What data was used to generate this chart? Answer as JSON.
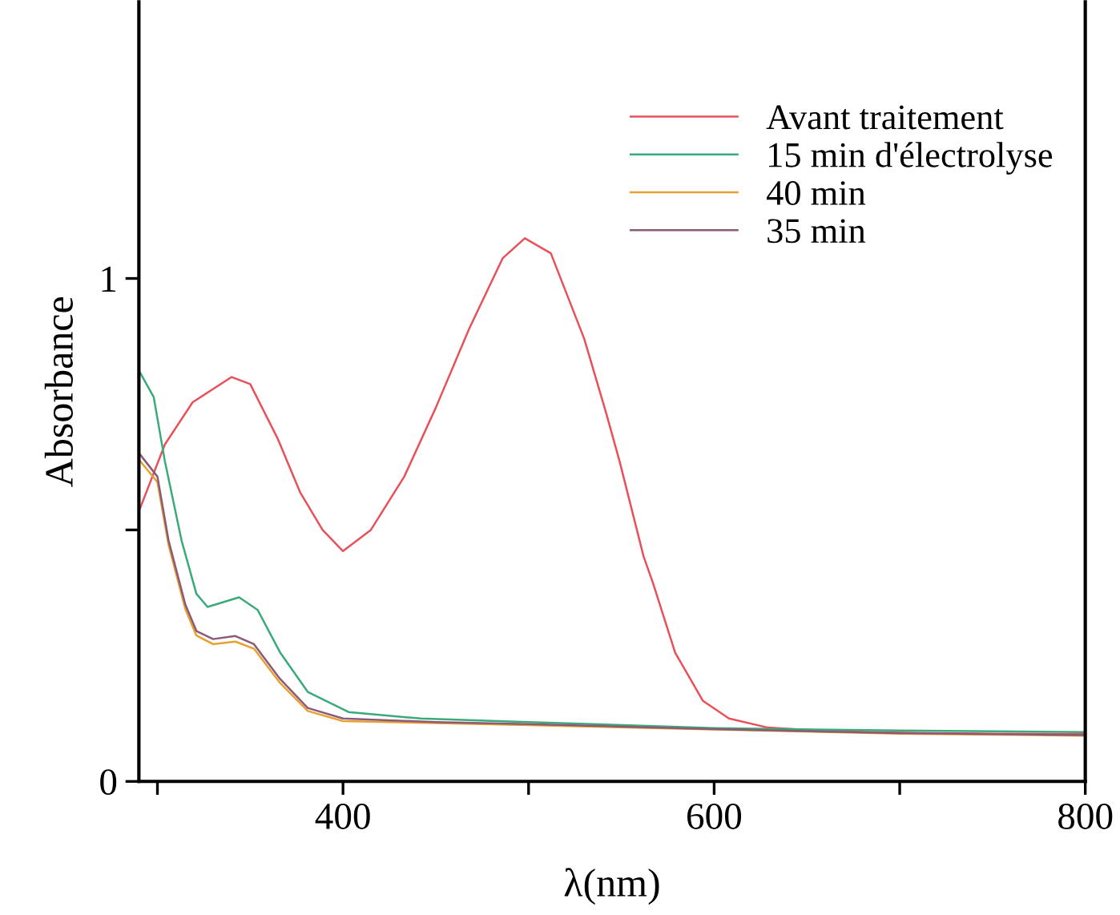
{
  "chart_data": {
    "type": "line",
    "xlabel": "λ(nm)",
    "ylabel": "Absorbance",
    "xlim": [
      290,
      800
    ],
    "xticks": [
      {
        "value": 300,
        "label": null
      },
      400,
      {
        "value": 500,
        "label": null
      },
      600,
      {
        "value": 700,
        "label": null
      },
      800
    ],
    "ylim": [
      0,
      1.55
    ],
    "yticks": [
      0,
      {
        "value": 0.5,
        "label": null
      },
      1
    ],
    "grid": false,
    "legend": "top right",
    "marker": "none",
    "line_style": "solid",
    "series": [
      {
        "name": "Avant traitement",
        "color": "#e8505a",
        "x": [
          290,
          304,
          319,
          340,
          350,
          365,
          377,
          389,
          400,
          415,
          433,
          450,
          468,
          486,
          498,
          512,
          530,
          542,
          549,
          562,
          567,
          579,
          594,
          608,
          629,
          660,
          700,
          750,
          800
        ],
        "values": [
          0.537,
          0.67,
          0.754,
          0.804,
          0.79,
          0.68,
          0.574,
          0.5,
          0.458,
          0.5,
          0.606,
          0.743,
          0.9,
          1.04,
          1.08,
          1.05,
          0.88,
          0.73,
          0.637,
          0.447,
          0.395,
          0.256,
          0.16,
          0.125,
          0.107,
          0.1,
          0.097,
          0.095,
          0.094
        ]
      },
      {
        "name": "15 min d'électrolyse",
        "color": "#3aaa7a",
        "x": [
          290,
          298,
          304,
          313,
          321,
          327,
          344,
          354,
          366,
          381,
          403,
          442,
          500,
          600,
          700,
          800
        ],
        "values": [
          0.817,
          0.764,
          0.637,
          0.479,
          0.373,
          0.347,
          0.366,
          0.341,
          0.257,
          0.178,
          0.138,
          0.125,
          0.118,
          0.106,
          0.101,
          0.098
        ]
      },
      {
        "name": "40 min",
        "color": "#e8a030",
        "x": [
          290,
          300,
          306,
          315,
          321,
          330,
          342,
          352,
          366,
          381,
          400,
          450,
          500,
          600,
          700,
          800
        ],
        "values": [
          0.64,
          0.595,
          0.47,
          0.343,
          0.29,
          0.273,
          0.278,
          0.264,
          0.196,
          0.14,
          0.12,
          0.116,
          0.112,
          0.103,
          0.095,
          0.091
        ]
      },
      {
        "name": "35 min",
        "color": "#8a5a78",
        "x": [
          290,
          300,
          306,
          315,
          321,
          330,
          342,
          352,
          366,
          381,
          400,
          450,
          500,
          600,
          700,
          800
        ],
        "values": [
          0.653,
          0.606,
          0.479,
          0.352,
          0.299,
          0.283,
          0.289,
          0.273,
          0.204,
          0.146,
          0.125,
          0.118,
          0.114,
          0.104,
          0.096,
          0.092
        ]
      }
    ]
  }
}
